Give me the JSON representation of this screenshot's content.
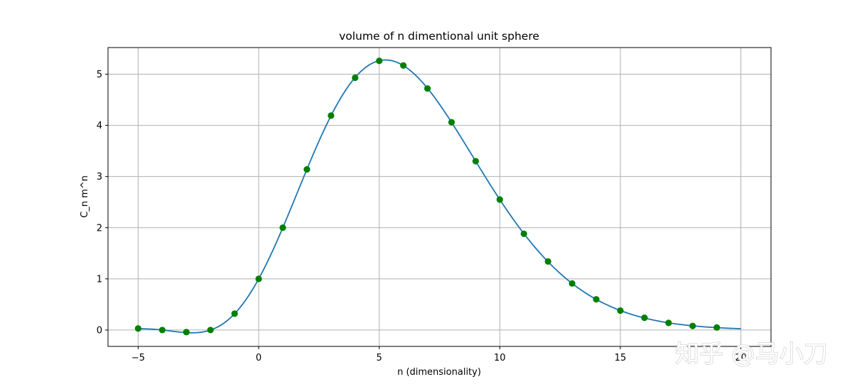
{
  "chart_data": {
    "type": "line",
    "title": "volume of n dimentional unit sphere",
    "xlabel": "n (dimensionality)",
    "ylabel": "C_n m^n",
    "xlim": [
      -6.25,
      21.25
    ],
    "ylim": [
      -0.32,
      5.52
    ],
    "xticks": [
      -5,
      0,
      5,
      10,
      15,
      20
    ],
    "yticks": [
      0,
      1,
      2,
      3,
      4,
      5
    ],
    "grid": true,
    "series": [
      {
        "kind": "curve",
        "color": "#1f77b4",
        "x_range": [
          -5,
          20
        ]
      },
      {
        "kind": "markers",
        "color": "#008000",
        "x": [
          -5,
          -4,
          -3,
          -2,
          -1,
          0,
          1,
          2,
          3,
          4,
          5,
          6,
          7,
          8,
          9,
          10,
          11,
          12,
          13,
          14,
          15,
          16,
          17,
          18,
          19
        ],
        "y": [
          0.03,
          0.0,
          -0.04,
          0.0,
          0.32,
          1.0,
          2.0,
          3.14,
          4.19,
          4.93,
          5.26,
          5.17,
          4.72,
          4.06,
          3.3,
          2.55,
          1.88,
          1.34,
          0.91,
          0.6,
          0.38,
          0.24,
          0.14,
          0.08,
          0.05
        ]
      }
    ]
  },
  "watermark": {
    "text": "知乎 @马小刀"
  }
}
